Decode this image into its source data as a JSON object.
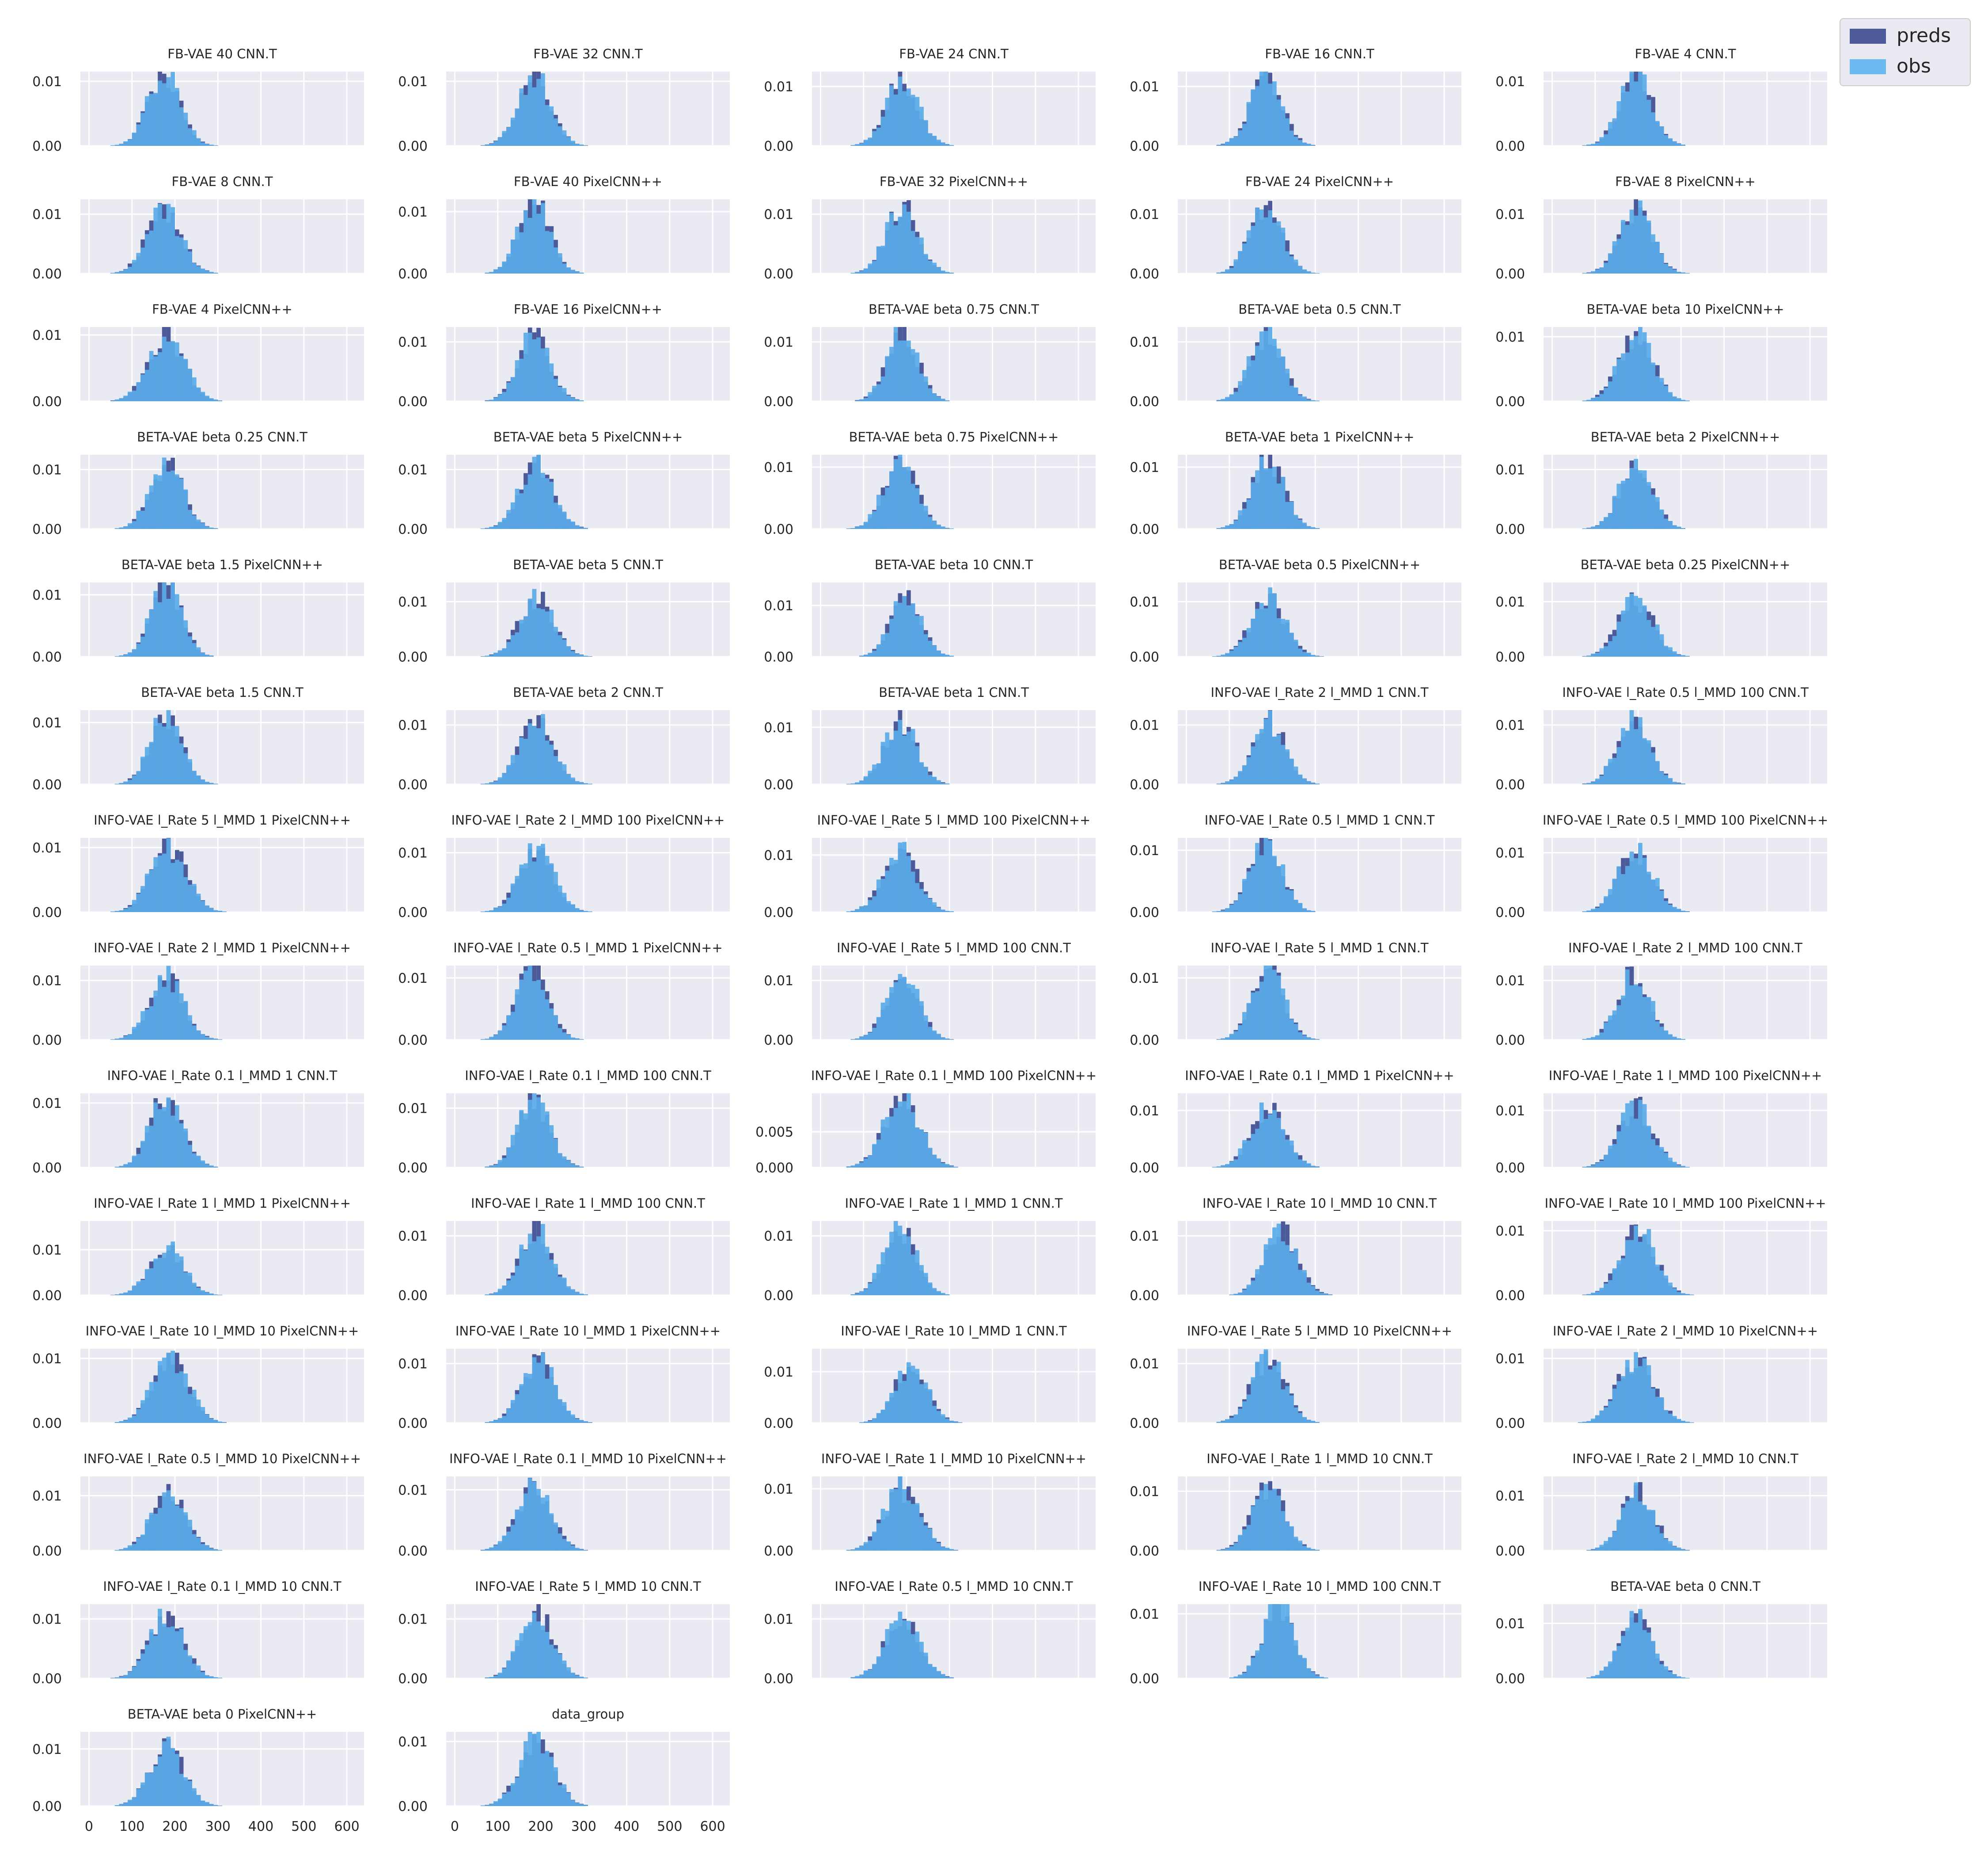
{
  "legend": {
    "position": "top-right",
    "items": [
      {
        "label": "preds",
        "color": "#4c5a9a"
      },
      {
        "label": "obs",
        "color": "#6cb8f0"
      }
    ]
  },
  "style": {
    "panel_background": "#eaeaf2",
    "grid_color": "#ffffff",
    "preds_color": "#4c5a9a",
    "obs_color": "#5aaae8"
  },
  "chart_data": {
    "type": "histogram",
    "layout": "small multiples grid, 5 columns, 14 rows (last row 2 panels)",
    "shared_x_axis": {
      "ticks": [
        "0",
        "100",
        "200",
        "300",
        "400",
        "500",
        "600"
      ],
      "range": [
        -20,
        640
      ]
    },
    "grid": true,
    "series_names": [
      "preds",
      "obs"
    ],
    "panels": [
      {
        "title": "FB-VAE 40 CNN.T",
        "y_ticks": [
          "0.00",
          "0.01"
        ],
        "ylim": [
          0,
          0.0115
        ],
        "center": 175,
        "spread": 38
      },
      {
        "title": "FB-VAE 32 CNN.T",
        "y_ticks": [
          "0.00",
          "0.01"
        ],
        "ylim": [
          0,
          0.0115
        ],
        "center": 185,
        "spread": 38
      },
      {
        "title": "FB-VAE 24 CNN.T",
        "y_ticks": [
          "0.00",
          "0.01"
        ],
        "ylim": [
          0,
          0.0125
        ],
        "center": 190,
        "spread": 38
      },
      {
        "title": "FB-VAE 16 CNN.T",
        "y_ticks": [
          "0.00",
          "0.01"
        ],
        "ylim": [
          0,
          0.0125
        ],
        "center": 185,
        "spread": 37
      },
      {
        "title": "FB-VAE 4 CNN.T",
        "y_ticks": [
          "0.00",
          "0.01"
        ],
        "ylim": [
          0,
          0.0115
        ],
        "center": 195,
        "spread": 38
      },
      {
        "title": "FB-VAE 8 CNN.T",
        "y_ticks": [
          "0.00",
          "0.01"
        ],
        "ylim": [
          0,
          0.0125
        ],
        "center": 175,
        "spread": 40
      },
      {
        "title": "FB-VAE 40 PixelCNN++",
        "y_ticks": [
          "0.00",
          "0.01"
        ],
        "ylim": [
          0,
          0.012
        ],
        "center": 185,
        "spread": 37
      },
      {
        "title": "FB-VAE 32 PixelCNN++",
        "y_ticks": [
          "0.00",
          "0.01"
        ],
        "ylim": [
          0,
          0.0125
        ],
        "center": 190,
        "spread": 38
      },
      {
        "title": "FB-VAE 24 PixelCNN++",
        "y_ticks": [
          "0.00",
          "0.01"
        ],
        "ylim": [
          0,
          0.0125
        ],
        "center": 185,
        "spread": 38
      },
      {
        "title": "FB-VAE 8 PixelCNN++",
        "y_ticks": [
          "0.00",
          "0.01"
        ],
        "ylim": [
          0,
          0.0125
        ],
        "center": 195,
        "spread": 38
      },
      {
        "title": "FB-VAE 4 PixelCNN++",
        "y_ticks": [
          "0.00",
          "0.01"
        ],
        "ylim": [
          0,
          0.0112
        ],
        "center": 180,
        "spread": 42
      },
      {
        "title": "FB-VAE 16 PixelCNN++",
        "y_ticks": [
          "0.00",
          "0.01"
        ],
        "ylim": [
          0,
          0.0125
        ],
        "center": 185,
        "spread": 37
      },
      {
        "title": "BETA-VAE beta 0.75 CNN.T",
        "y_ticks": [
          "0.00",
          "0.01"
        ],
        "ylim": [
          0,
          0.0125
        ],
        "center": 190,
        "spread": 36
      },
      {
        "title": "BETA-VAE beta 0.5 CNN.T",
        "y_ticks": [
          "0.00",
          "0.01"
        ],
        "ylim": [
          0,
          0.0125
        ],
        "center": 185,
        "spread": 38
      },
      {
        "title": "BETA-VAE beta 10 PixelCNN++",
        "y_ticks": [
          "0.00",
          "0.01"
        ],
        "ylim": [
          0,
          0.0115
        ],
        "center": 195,
        "spread": 40
      },
      {
        "title": "BETA-VAE beta 0.25 CNN.T",
        "y_ticks": [
          "0.00",
          "0.01"
        ],
        "ylim": [
          0,
          0.0125
        ],
        "center": 180,
        "spread": 38
      },
      {
        "title": "BETA-VAE beta 5 PixelCNN++",
        "y_ticks": [
          "0.00",
          "0.01"
        ],
        "ylim": [
          0,
          0.0125
        ],
        "center": 190,
        "spread": 40
      },
      {
        "title": "BETA-VAE beta 0.75 PixelCNN++",
        "y_ticks": [
          "0.00",
          "0.01"
        ],
        "ylim": [
          0,
          0.012
        ],
        "center": 185,
        "spread": 38
      },
      {
        "title": "BETA-VAE beta 1 PixelCNN++",
        "y_ticks": [
          "0.00",
          "0.01"
        ],
        "ylim": [
          0,
          0.012
        ],
        "center": 190,
        "spread": 38
      },
      {
        "title": "BETA-VAE beta 2 PixelCNN++",
        "y_ticks": [
          "0.00",
          "0.01"
        ],
        "ylim": [
          0,
          0.0125
        ],
        "center": 195,
        "spread": 38
      },
      {
        "title": "BETA-VAE beta 1.5 PixelCNN++",
        "y_ticks": [
          "0.00",
          "0.01"
        ],
        "ylim": [
          0,
          0.012
        ],
        "center": 180,
        "spread": 36
      },
      {
        "title": "BETA-VAE beta 5 CNN.T",
        "y_ticks": [
          "0.00",
          "0.01"
        ],
        "ylim": [
          0,
          0.0135
        ],
        "center": 190,
        "spread": 40
      },
      {
        "title": "BETA-VAE beta 10 CNN.T",
        "y_ticks": [
          "0.00",
          "0.01"
        ],
        "ylim": [
          0,
          0.0145
        ],
        "center": 200,
        "spread": 36
      },
      {
        "title": "BETA-VAE beta 0.5 PixelCNN++",
        "y_ticks": [
          "0.00",
          "0.01"
        ],
        "ylim": [
          0,
          0.0135
        ],
        "center": 190,
        "spread": 40
      },
      {
        "title": "BETA-VAE beta 0.25 PixelCNN++",
        "y_ticks": [
          "0.00",
          "0.01"
        ],
        "ylim": [
          0,
          0.0135
        ],
        "center": 195,
        "spread": 40
      },
      {
        "title": "BETA-VAE beta 1.5 CNN.T",
        "y_ticks": [
          "0.00",
          "0.01"
        ],
        "ylim": [
          0,
          0.012
        ],
        "center": 180,
        "spread": 37
      },
      {
        "title": "BETA-VAE beta 2 CNN.T",
        "y_ticks": [
          "0.00",
          "0.01"
        ],
        "ylim": [
          0,
          0.0125
        ],
        "center": 190,
        "spread": 40
      },
      {
        "title": "BETA-VAE beta 1 CNN.T",
        "y_ticks": [
          "0.00",
          "0.01"
        ],
        "ylim": [
          0,
          0.013
        ],
        "center": 185,
        "spread": 38
      },
      {
        "title": "INFO-VAE l_Rate 2 l_MMD 1 CNN.T",
        "y_ticks": [
          "0.00",
          "0.01"
        ],
        "ylim": [
          0,
          0.0125
        ],
        "center": 190,
        "spread": 38
      },
      {
        "title": "INFO-VAE l_Rate 0.5 l_MMD 100 CNN.T",
        "y_ticks": [
          "0.00",
          "0.01"
        ],
        "ylim": [
          0,
          0.0125
        ],
        "center": 190,
        "spread": 38
      },
      {
        "title": "INFO-VAE l_Rate 5 l_MMD 1 PixelCNN++",
        "y_ticks": [
          "0.00",
          "0.01"
        ],
        "ylim": [
          0,
          0.0115
        ],
        "center": 185,
        "spread": 42
      },
      {
        "title": "INFO-VAE l_Rate 2 l_MMD 100 PixelCNN++",
        "y_ticks": [
          "0.00",
          "0.01"
        ],
        "ylim": [
          0,
          0.0125
        ],
        "center": 190,
        "spread": 40
      },
      {
        "title": "INFO-VAE l_Rate 5 l_MMD 100 PixelCNN++",
        "y_ticks": [
          "0.00",
          "0.01"
        ],
        "ylim": [
          0,
          0.013
        ],
        "center": 185,
        "spread": 40
      },
      {
        "title": "INFO-VAE l_Rate 0.5 l_MMD 1 CNN.T",
        "y_ticks": [
          "0.00",
          "0.01"
        ],
        "ylim": [
          0,
          0.012
        ],
        "center": 185,
        "spread": 38
      },
      {
        "title": "INFO-VAE l_Rate 0.5 l_MMD 100 PixelCNN++",
        "y_ticks": [
          "0.00",
          "0.01"
        ],
        "ylim": [
          0,
          0.0125
        ],
        "center": 195,
        "spread": 40
      },
      {
        "title": "INFO-VAE l_Rate 2 l_MMD 1 PixelCNN++",
        "y_ticks": [
          "0.00",
          "0.01"
        ],
        "ylim": [
          0,
          0.0125
        ],
        "center": 180,
        "spread": 40
      },
      {
        "title": "INFO-VAE l_Rate 0.5 l_MMD 1 PixelCNN++",
        "y_ticks": [
          "0.00",
          "0.01"
        ],
        "ylim": [
          0,
          0.012
        ],
        "center": 180,
        "spread": 37
      },
      {
        "title": "INFO-VAE l_Rate 5 l_MMD 100 CNN.T",
        "y_ticks": [
          "0.00",
          "0.01"
        ],
        "ylim": [
          0,
          0.0125
        ],
        "center": 190,
        "spread": 38
      },
      {
        "title": "INFO-VAE l_Rate 5 l_MMD 1 CNN.T",
        "y_ticks": [
          "0.00",
          "0.01"
        ],
        "ylim": [
          0,
          0.012
        ],
        "center": 190,
        "spread": 37
      },
      {
        "title": "INFO-VAE l_Rate 2 l_MMD 100 CNN.T",
        "y_ticks": [
          "0.00",
          "0.01"
        ],
        "ylim": [
          0,
          0.0125
        ],
        "center": 190,
        "spread": 38
      },
      {
        "title": "INFO-VAE l_Rate 0.1 l_MMD 1 CNN.T",
        "y_ticks": [
          "0.00",
          "0.01"
        ],
        "ylim": [
          0,
          0.0115
        ],
        "center": 180,
        "spread": 38
      },
      {
        "title": "INFO-VAE l_Rate 0.1 l_MMD 100 CNN.T",
        "y_ticks": [
          "0.00",
          "0.01"
        ],
        "ylim": [
          0,
          0.0125
        ],
        "center": 185,
        "spread": 37
      },
      {
        "title": "INFO-VAE l_Rate 0.1 l_MMD 100 PixelCNN++",
        "y_ticks": [
          "0.000",
          "0.005"
        ],
        "ylim": [
          0,
          0.0104
        ],
        "center": 190,
        "spread": 42
      },
      {
        "title": "INFO-VAE l_Rate 0.1 l_MMD 1 PixelCNN++",
        "y_ticks": [
          "0.00",
          "0.01"
        ],
        "ylim": [
          0,
          0.013
        ],
        "center": 190,
        "spread": 40
      },
      {
        "title": "INFO-VAE l_Rate 1 l_MMD 100 PixelCNN++",
        "y_ticks": [
          "0.00",
          "0.01"
        ],
        "ylim": [
          0,
          0.013
        ],
        "center": 195,
        "spread": 40
      },
      {
        "title": "INFO-VAE l_Rate 1 l_MMD 1 PixelCNN++",
        "y_ticks": [
          "0.00",
          "0.01"
        ],
        "ylim": [
          0,
          0.0163
        ],
        "center": 180,
        "spread": 40
      },
      {
        "title": "INFO-VAE l_Rate 1 l_MMD 100 CNN.T",
        "y_ticks": [
          "0.00",
          "0.01"
        ],
        "ylim": [
          0,
          0.0125
        ],
        "center": 190,
        "spread": 38
      },
      {
        "title": "INFO-VAE l_Rate 1 l_MMD 1 CNN.T",
        "y_ticks": [
          "0.00",
          "0.01"
        ],
        "ylim": [
          0,
          0.0125
        ],
        "center": 185,
        "spread": 38
      },
      {
        "title": "INFO-VAE l_Rate 10 l_MMD 10 CNN.T",
        "y_ticks": [
          "0.00",
          "0.01"
        ],
        "ylim": [
          0,
          0.0125
        ],
        "center": 220,
        "spread": 38
      },
      {
        "title": "INFO-VAE l_Rate 10 l_MMD 100 PixelCNN++",
        "y_ticks": [
          "0.00",
          "0.01"
        ],
        "ylim": [
          0,
          0.0115
        ],
        "center": 200,
        "spread": 40
      },
      {
        "title": "INFO-VAE l_Rate 10 l_MMD 10 PixelCNN++",
        "y_ticks": [
          "0.00",
          "0.01"
        ],
        "ylim": [
          0,
          0.0115
        ],
        "center": 190,
        "spread": 42
      },
      {
        "title": "INFO-VAE l_Rate 10 l_MMD 1 PixelCNN++",
        "y_ticks": [
          "0.00",
          "0.01"
        ],
        "ylim": [
          0,
          0.0125
        ],
        "center": 195,
        "spread": 40
      },
      {
        "title": "INFO-VAE l_Rate 10 l_MMD 1 CNN.T",
        "y_ticks": [
          "0.00",
          "0.01"
        ],
        "ylim": [
          0,
          0.0145
        ],
        "center": 210,
        "spread": 38
      },
      {
        "title": "INFO-VAE l_Rate 5 l_MMD 10 PixelCNN++",
        "y_ticks": [
          "0.00",
          "0.01"
        ],
        "ylim": [
          0,
          0.0125
        ],
        "center": 190,
        "spread": 40
      },
      {
        "title": "INFO-VAE l_Rate 2 l_MMD 10 PixelCNN++",
        "y_ticks": [
          "0.00",
          "0.01"
        ],
        "ylim": [
          0,
          0.0115
        ],
        "center": 195,
        "spread": 42
      },
      {
        "title": "INFO-VAE l_Rate 0.5 l_MMD 10 PixelCNN++",
        "y_ticks": [
          "0.00",
          "0.01"
        ],
        "ylim": [
          0,
          0.0135
        ],
        "center": 185,
        "spread": 40
      },
      {
        "title": "INFO-VAE l_Rate 0.1 l_MMD 10 PixelCNN++",
        "y_ticks": [
          "0.00",
          "0.01"
        ],
        "ylim": [
          0,
          0.0122
        ],
        "center": 185,
        "spread": 40
      },
      {
        "title": "INFO-VAE l_Rate 1 l_MMD 10 PixelCNN++",
        "y_ticks": [
          "0.00",
          "0.01"
        ],
        "ylim": [
          0,
          0.012
        ],
        "center": 190,
        "spread": 42
      },
      {
        "title": "INFO-VAE l_Rate 1 l_MMD 10 CNN.T",
        "y_ticks": [
          "0.00",
          "0.01"
        ],
        "ylim": [
          0,
          0.0125
        ],
        "center": 190,
        "spread": 38
      },
      {
        "title": "INFO-VAE l_Rate 2 l_MMD 10 CNN.T",
        "y_ticks": [
          "0.00",
          "0.01"
        ],
        "ylim": [
          0,
          0.0135
        ],
        "center": 200,
        "spread": 38
      },
      {
        "title": "INFO-VAE l_Rate 0.1 l_MMD 10 CNN.T",
        "y_ticks": [
          "0.00",
          "0.01"
        ],
        "ylim": [
          0,
          0.0125
        ],
        "center": 180,
        "spread": 40
      },
      {
        "title": "INFO-VAE l_Rate 5 l_MMD 10 CNN.T",
        "y_ticks": [
          "0.00",
          "0.01"
        ],
        "ylim": [
          0,
          0.0125
        ],
        "center": 190,
        "spread": 38
      },
      {
        "title": "INFO-VAE l_Rate 0.5 l_MMD 10 CNN.T",
        "y_ticks": [
          "0.00",
          "0.01"
        ],
        "ylim": [
          0,
          0.0125
        ],
        "center": 190,
        "spread": 40
      },
      {
        "title": "INFO-VAE l_Rate 10 l_MMD 100 CNN.T",
        "y_ticks": [
          "0.00",
          "0.01"
        ],
        "ylim": [
          0,
          0.0115
        ],
        "center": 215,
        "spread": 36
      },
      {
        "title": "BETA-VAE beta 0 CNN.T",
        "y_ticks": [
          "0.00",
          "0.01"
        ],
        "ylim": [
          0,
          0.0135
        ],
        "center": 195,
        "spread": 38
      },
      {
        "title": "BETA-VAE beta 0 PixelCNN++",
        "y_ticks": [
          "0.00",
          "0.01"
        ],
        "ylim": [
          0,
          0.013
        ],
        "center": 180,
        "spread": 40
      },
      {
        "title": "data_group",
        "y_ticks": [
          "0.00",
          "0.01"
        ],
        "ylim": [
          0,
          0.0115
        ],
        "center": 190,
        "spread": 40
      }
    ]
  }
}
